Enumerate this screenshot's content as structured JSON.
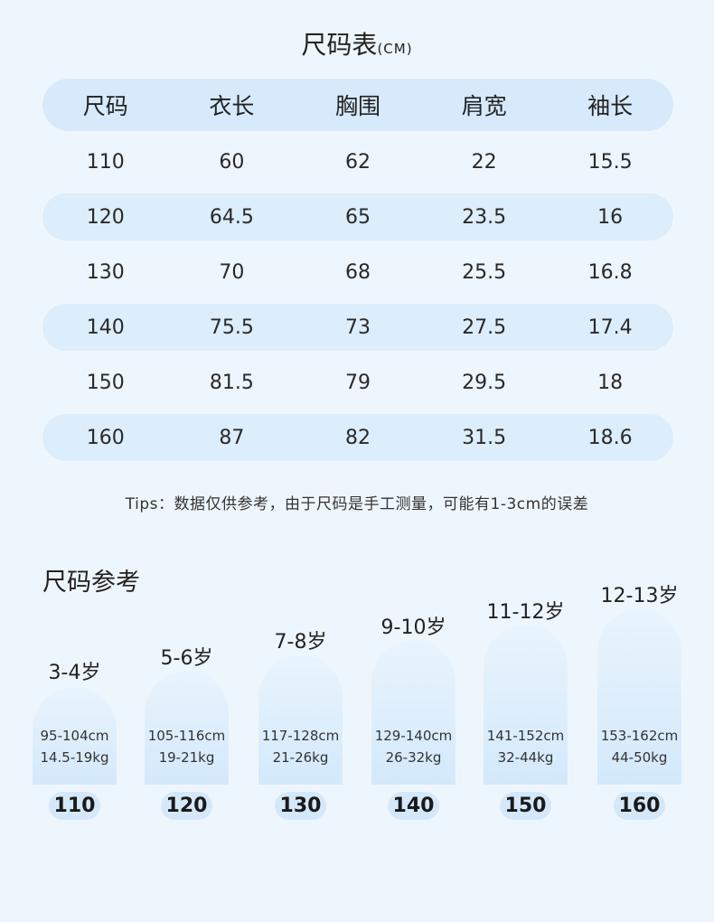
{
  "title": {
    "main": "尺码表",
    "unit": "(CM)"
  },
  "table": {
    "headers": [
      "尺码",
      "衣长",
      "胸围",
      "肩宽",
      "袖长"
    ],
    "rows": [
      [
        "110",
        "60",
        "62",
        "22",
        "15.5"
      ],
      [
        "120",
        "64.5",
        "65",
        "23.5",
        "16"
      ],
      [
        "130",
        "70",
        "68",
        "25.5",
        "16.8"
      ],
      [
        "140",
        "75.5",
        "73",
        "27.5",
        "17.4"
      ],
      [
        "150",
        "81.5",
        "79",
        "29.5",
        "18"
      ],
      [
        "160",
        "87",
        "82",
        "31.5",
        "18.6"
      ]
    ]
  },
  "tips": "Tips：数据仅供参考，由于尺码是手工测量，可能有1-3cm的误差",
  "reference": {
    "title": "尺码参考",
    "items": [
      {
        "age": "3-4岁",
        "height": "95-104cm",
        "weight": "14.5-19kg",
        "size": "110"
      },
      {
        "age": "5-6岁",
        "height": "105-116cm",
        "weight": "19-21kg",
        "size": "120"
      },
      {
        "age": "7-8岁",
        "height": "117-128cm",
        "weight": "21-26kg",
        "size": "130"
      },
      {
        "age": "9-10岁",
        "height": "129-140cm",
        "weight": "26-32kg",
        "size": "140"
      },
      {
        "age": "11-12岁",
        "height": "141-152cm",
        "weight": "32-44kg",
        "size": "150"
      },
      {
        "age": "12-13岁",
        "height": "153-162cm",
        "weight": "44-50kg",
        "size": "160"
      }
    ]
  }
}
